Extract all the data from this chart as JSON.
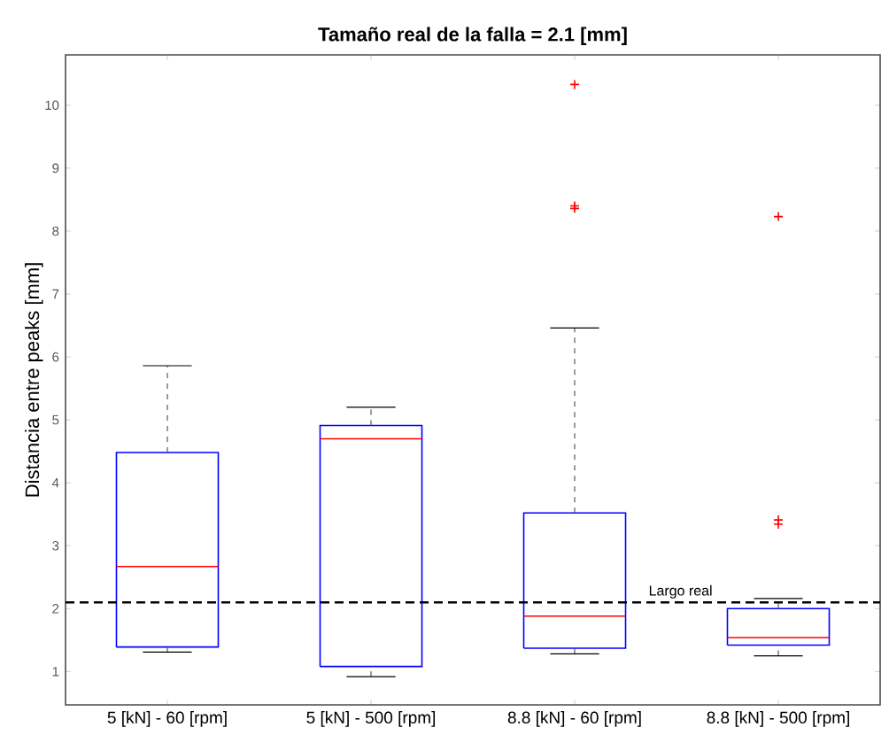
{
  "chart_data": {
    "type": "box",
    "title": "Tamaño real de la falla = 2.1 [mm]",
    "ylabel": "Distancia entre peaks [mm]",
    "categories": [
      "5 [kN] - 60 [rpm]",
      "5 [kN] - 500 [rpm]",
      "8.8 [kN] - 60 [rpm]",
      "8.8 [kN] - 500 [rpm]"
    ],
    "boxes": [
      {
        "low": 1.31,
        "q1": 1.39,
        "median": 2.67,
        "q3": 4.48,
        "high": 5.86
      },
      {
        "low": 0.92,
        "q1": 1.08,
        "median": 4.7,
        "q3": 4.91,
        "high": 5.2
      },
      {
        "low": 1.28,
        "q1": 1.37,
        "median": 1.88,
        "q3": 3.52,
        "high": 6.46,
        "outliers": [
          10.33,
          8.4,
          8.36
        ]
      },
      {
        "low": 1.25,
        "q1": 1.42,
        "median": 1.54,
        "q3": 2.0,
        "high": 2.16,
        "outliers": [
          8.23,
          3.41,
          3.34
        ]
      }
    ],
    "ylim": [
      0.47,
      10.8
    ],
    "yticks": [
      1,
      2,
      3,
      4,
      5,
      6,
      7,
      8,
      9,
      10
    ],
    "ref_lines": [
      {
        "axis": "y",
        "value": 2.1,
        "label": "Largo real",
        "color": "#000000",
        "line_style": "dashed"
      }
    ]
  }
}
